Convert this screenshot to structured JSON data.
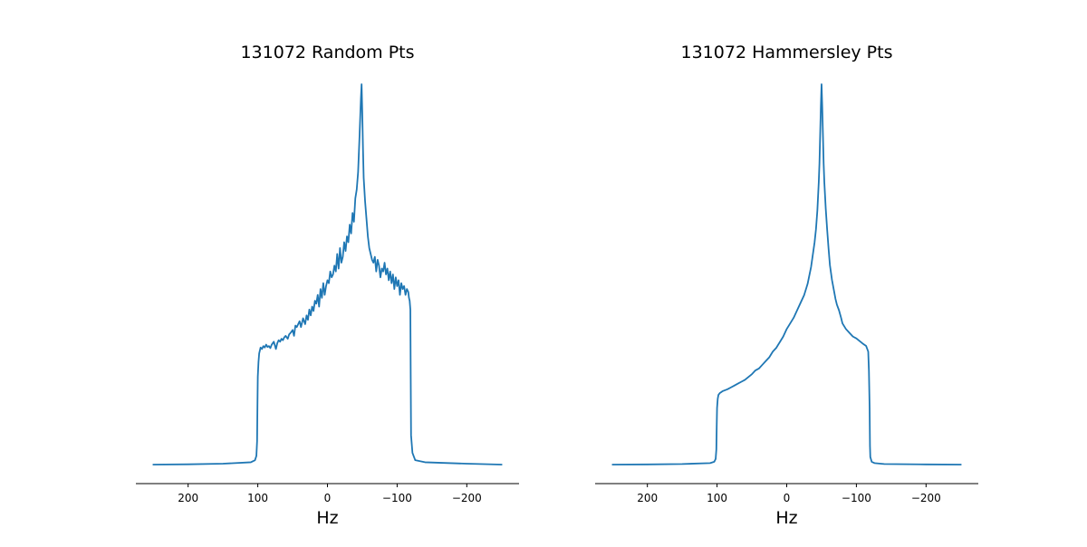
{
  "chart_data": [
    {
      "type": "line",
      "title": "131072 Random Pts",
      "xlabel": "Hz",
      "ylabel": "",
      "x_reversed": true,
      "xlim": [
        275,
        -275
      ],
      "xticks": [
        200,
        100,
        0,
        -100,
        -200
      ],
      "xtick_labels": [
        "200",
        "100",
        "0",
        "−100",
        "−200"
      ],
      "yticks_visible": false,
      "grid": false,
      "series": [
        {
          "color": "#1f77b4",
          "x": [
            250,
            200,
            150,
            110,
            104,
            102,
            101,
            100.5,
            100,
            99,
            98,
            96,
            94,
            92,
            90,
            88,
            86,
            84,
            82,
            80,
            77,
            74,
            72,
            70,
            68,
            66,
            64,
            62,
            60,
            57,
            55,
            53,
            50,
            48,
            46,
            44,
            42,
            40,
            38,
            35,
            32,
            30,
            28,
            26,
            24,
            22,
            20,
            18,
            16,
            14,
            12,
            10,
            8,
            6,
            4,
            2,
            0,
            -2,
            -4,
            -6,
            -8,
            -10,
            -12,
            -14,
            -16,
            -18,
            -20,
            -22,
            -24,
            -26,
            -28,
            -30,
            -32,
            -34,
            -36,
            -38,
            -40,
            -42,
            -44,
            -46,
            -48,
            -49,
            -50,
            -51,
            -52,
            -54,
            -56,
            -58,
            -60,
            -62,
            -64,
            -66,
            -68,
            -70,
            -72,
            -74,
            -76,
            -78,
            -80,
            -82,
            -84,
            -86,
            -88,
            -90,
            -92,
            -94,
            -96,
            -98,
            -100,
            -102,
            -104,
            -106,
            -108,
            -110,
            -112,
            -114,
            -116,
            -117,
            -118,
            -119,
            -119.5,
            -120,
            -122,
            -126,
            -140,
            -200,
            -250
          ],
          "y": [
            0.0,
            0.001,
            0.003,
            0.008,
            0.015,
            0.03,
            0.08,
            0.2,
            0.3,
            0.35,
            0.38,
            0.4,
            0.395,
            0.405,
            0.4,
            0.41,
            0.402,
            0.405,
            0.398,
            0.41,
            0.42,
            0.395,
            0.415,
            0.425,
            0.42,
            0.43,
            0.425,
            0.435,
            0.44,
            0.43,
            0.445,
            0.45,
            0.46,
            0.44,
            0.475,
            0.47,
            0.48,
            0.49,
            0.47,
            0.5,
            0.48,
            0.51,
            0.495,
            0.53,
            0.51,
            0.54,
            0.525,
            0.56,
            0.55,
            0.58,
            0.54,
            0.6,
            0.57,
            0.62,
            0.58,
            0.61,
            0.63,
            0.62,
            0.66,
            0.64,
            0.65,
            0.68,
            0.66,
            0.72,
            0.67,
            0.74,
            0.69,
            0.71,
            0.76,
            0.73,
            0.78,
            0.76,
            0.82,
            0.79,
            0.86,
            0.83,
            0.91,
            0.94,
            1.0,
            1.12,
            1.25,
            1.3,
            1.2,
            1.08,
            0.98,
            0.9,
            0.84,
            0.78,
            0.74,
            0.72,
            0.7,
            0.69,
            0.71,
            0.66,
            0.7,
            0.68,
            0.64,
            0.67,
            0.66,
            0.69,
            0.65,
            0.67,
            0.63,
            0.66,
            0.62,
            0.65,
            0.6,
            0.64,
            0.61,
            0.63,
            0.58,
            0.62,
            0.6,
            0.61,
            0.58,
            0.6,
            0.59,
            0.57,
            0.56,
            0.53,
            0.3,
            0.1,
            0.04,
            0.015,
            0.008,
            0.003,
            0.0
          ]
        }
      ]
    },
    {
      "type": "line",
      "title": "131072 Hammersley Pts",
      "xlabel": "Hz",
      "ylabel": "",
      "x_reversed": true,
      "xlim": [
        275,
        -275
      ],
      "xticks": [
        200,
        100,
        0,
        -100,
        -200
      ],
      "xtick_labels": [
        "200",
        "100",
        "0",
        "−100",
        "−200"
      ],
      "yticks_visible": false,
      "grid": false,
      "series": [
        {
          "color": "#1f77b4",
          "x": [
            250,
            200,
            150,
            110,
            104,
            102,
            101,
            100.5,
            100,
            99,
            98,
            96,
            94,
            92,
            90,
            85,
            80,
            75,
            70,
            65,
            60,
            55,
            50,
            45,
            40,
            35,
            30,
            25,
            20,
            15,
            10,
            5,
            0,
            -5,
            -10,
            -15,
            -20,
            -25,
            -30,
            -35,
            -40,
            -42,
            -44,
            -46,
            -47,
            -48,
            -49,
            -50,
            -51,
            -52,
            -53,
            -54,
            -56,
            -58,
            -60,
            -62,
            -65,
            -68,
            -70,
            -72,
            -75,
            -78,
            -80,
            -85,
            -90,
            -95,
            -100,
            -105,
            -110,
            -114,
            -117,
            -118,
            -119,
            -119.5,
            -120,
            -122,
            -126,
            -140,
            -200,
            -250
          ],
          "y": [
            0.0,
            0.001,
            0.003,
            0.008,
            0.015,
            0.03,
            0.08,
            0.2,
            0.3,
            0.35,
            0.37,
            0.38,
            0.385,
            0.39,
            0.393,
            0.4,
            0.41,
            0.42,
            0.43,
            0.44,
            0.45,
            0.465,
            0.48,
            0.5,
            0.51,
            0.53,
            0.55,
            0.57,
            0.6,
            0.62,
            0.65,
            0.68,
            0.72,
            0.75,
            0.78,
            0.82,
            0.86,
            0.9,
            0.96,
            1.05,
            1.18,
            1.25,
            1.35,
            1.5,
            1.6,
            1.75,
            1.9,
            2.02,
            1.9,
            1.75,
            1.6,
            1.5,
            1.36,
            1.25,
            1.15,
            1.06,
            0.98,
            0.92,
            0.88,
            0.85,
            0.82,
            0.78,
            0.75,
            0.72,
            0.7,
            0.68,
            0.67,
            0.655,
            0.64,
            0.63,
            0.6,
            0.5,
            0.3,
            0.1,
            0.04,
            0.015,
            0.008,
            0.003,
            0.001,
            0.0
          ]
        }
      ]
    }
  ]
}
